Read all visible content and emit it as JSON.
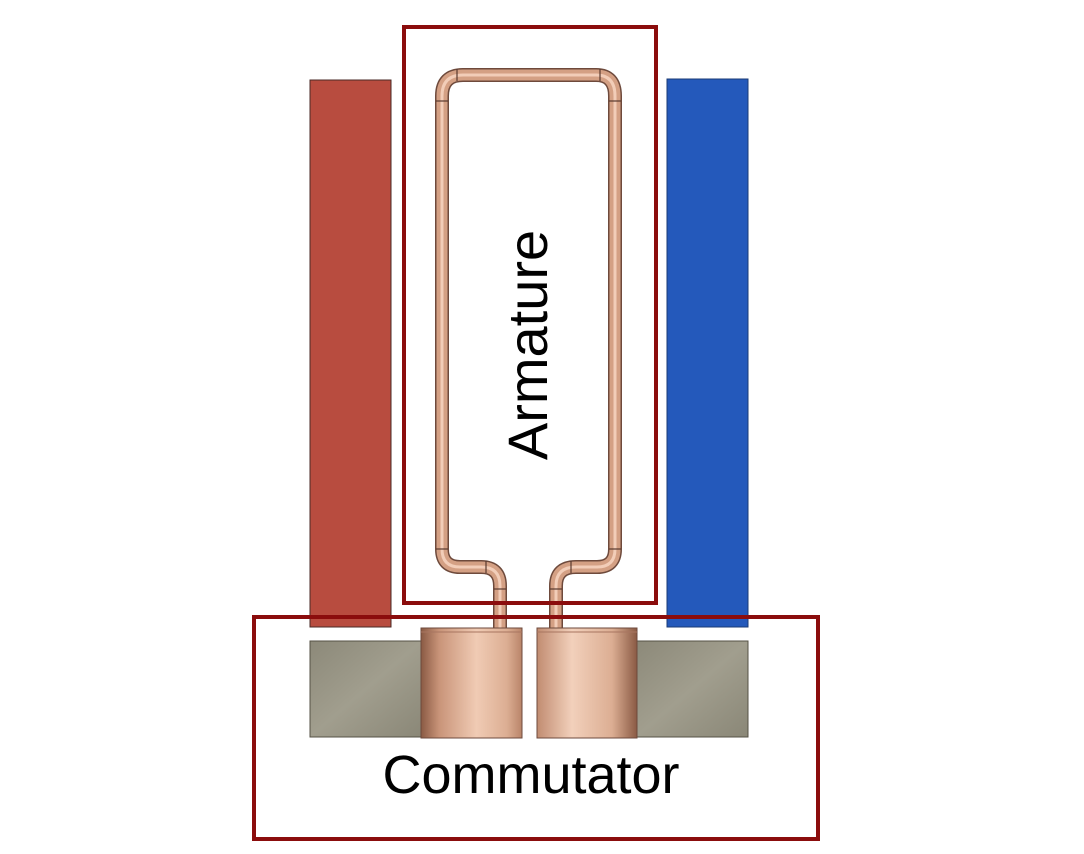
{
  "labels": {
    "armature": "Armature",
    "commutator": "Commutator"
  },
  "colors": {
    "north_pole": "#b84c3f",
    "south_pole": "#2459bb",
    "highlight_box": "#8b0d0d",
    "copper_wire": "#d4a084",
    "brush": "#8e8b7b",
    "copper_segment": "#deb49b"
  },
  "icons": {
    "left_magnet": "red-magnet-pole",
    "right_magnet": "blue-magnet-pole",
    "loop": "copper-armature-loop",
    "brushes": "grey-carbon-brush",
    "segments": "copper-commutator-segment"
  }
}
